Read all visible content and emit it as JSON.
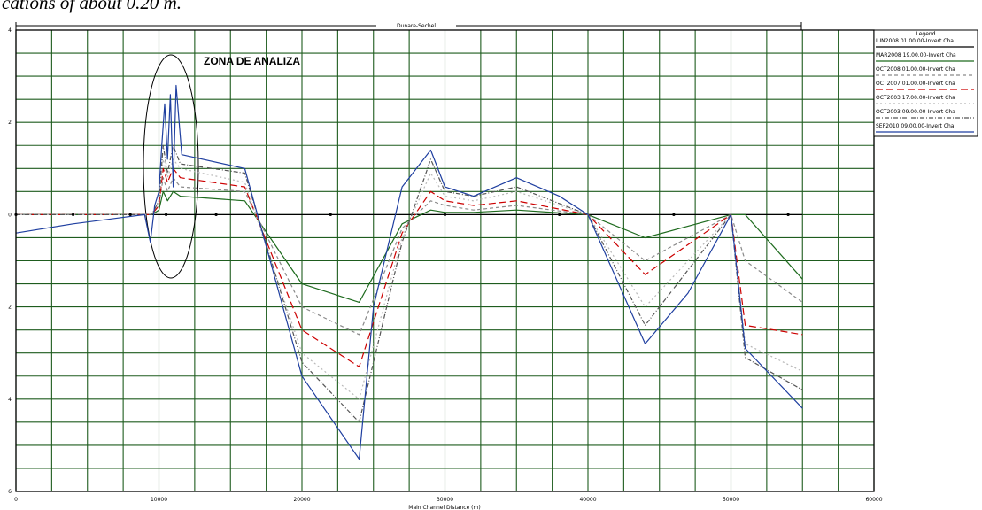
{
  "header_fragment": "cations of about 0.20 m.",
  "chart_data": {
    "type": "line",
    "title": "Dunare-Sechel",
    "xlabel": "Main Channel Distance (m)",
    "ylabel": "",
    "xlim": [
      0,
      60000
    ],
    "ylim": [
      -6,
      4
    ],
    "x_ticks": [
      "0",
      "10000",
      "20000",
      "30000",
      "40000",
      "50000",
      "60000"
    ],
    "y_ticks": [
      {
        "value": 4,
        "label": "4"
      },
      {
        "value": 2,
        "label": "2"
      },
      {
        "value": 0,
        "label": "0"
      },
      {
        "value": -2,
        "label": "2"
      },
      {
        "value": -4,
        "label": "4"
      },
      {
        "value": -6,
        "label": "6"
      }
    ],
    "grid": true,
    "legend_position": "right",
    "legend_title": "Legend",
    "annotation": "ZONA DE ANALIZA",
    "series": [
      {
        "name": "IUN2008 01.00.00-Invert Cha",
        "color": "#000000",
        "dash": "",
        "x": [
          0,
          1000,
          2000,
          3000,
          4000,
          5000,
          6000,
          7000,
          8000,
          9000,
          9500,
          10000,
          10500,
          11000,
          11500,
          12000,
          14000,
          16000,
          18000,
          20000,
          22000,
          24000,
          26000,
          28000,
          30000,
          32000,
          34000,
          36000,
          38000,
          40000,
          42000,
          44000,
          46000,
          48000,
          50000,
          52000,
          54000,
          55000
        ],
        "y": [
          0,
          0,
          0,
          0,
          0,
          0,
          0,
          0,
          0,
          0,
          0,
          0,
          0,
          0,
          0,
          0,
          0,
          0,
          0,
          0,
          0,
          0,
          0,
          0,
          0,
          0,
          0,
          0,
          0,
          0,
          0,
          0,
          0,
          0,
          0,
          0,
          0,
          0
        ]
      },
      {
        "name": "MAR2008 19.00.00-Invert Cha",
        "color": "#1e6b1e",
        "dash": "",
        "x": [
          0,
          9500,
          10000,
          10300,
          10600,
          11000,
          11500,
          16000,
          20000,
          24000,
          27000,
          29000,
          30000,
          32000,
          35000,
          40000,
          44000,
          50000,
          51000,
          55000
        ],
        "y": [
          0,
          0,
          0.1,
          0.5,
          0.3,
          0.5,
          0.4,
          0.3,
          -1.5,
          -1.9,
          -0.2,
          0.1,
          0.05,
          0.05,
          0.1,
          0,
          -0.5,
          0,
          0,
          -1.4
        ]
      },
      {
        "name": "OCT2008 01.00.00-Invert Cha",
        "color": "#8a8a8a",
        "dash": "4,3",
        "x": [
          0,
          9500,
          10000,
          10300,
          10600,
          11000,
          11500,
          16000,
          20000,
          24000,
          27000,
          29000,
          30000,
          32000,
          35000,
          40000,
          44000,
          50000,
          51000,
          55000
        ],
        "y": [
          0,
          0,
          0.2,
          0.8,
          0.5,
          0.8,
          0.6,
          0.5,
          -2.0,
          -2.6,
          -0.3,
          0.3,
          0.2,
          0.1,
          0.2,
          0,
          -1.0,
          0,
          -1.0,
          -1.9
        ]
      },
      {
        "name": "OCT2007 01.00.00-Invert Cha",
        "color": "#cc0000",
        "dash": "8,4",
        "x": [
          0,
          9500,
          10000,
          10300,
          10600,
          11000,
          11500,
          16000,
          20000,
          24000,
          27000,
          29000,
          30000,
          32000,
          35000,
          40000,
          44000,
          50000,
          51000,
          55000
        ],
        "y": [
          0,
          0,
          0.2,
          1.0,
          0.7,
          1.0,
          0.8,
          0.6,
          -2.5,
          -3.3,
          -0.4,
          0.5,
          0.3,
          0.2,
          0.3,
          0,
          -1.3,
          0,
          -2.4,
          -2.6
        ]
      },
      {
        "name": "OCT2003 17.00.00-Invert Cha",
        "color": "#b8b8b8",
        "dash": "2,3",
        "x": [
          0,
          9500,
          10000,
          10300,
          10600,
          11000,
          11500,
          16000,
          20000,
          24000,
          27000,
          29000,
          30000,
          32000,
          35000,
          40000,
          44000,
          50000,
          51000,
          55000
        ],
        "y": [
          0,
          0,
          0.3,
          1.2,
          0.8,
          1.2,
          1.0,
          0.7,
          -3.0,
          -4.0,
          -0.5,
          0.9,
          0.4,
          0.3,
          0.5,
          0,
          -2.0,
          0,
          -2.8,
          -3.4
        ]
      },
      {
        "name": "OCT2003 09.00.00-Invert Cha",
        "color": "#555555",
        "dash": "5,2,1,2",
        "x": [
          0,
          9500,
          10000,
          10300,
          10600,
          11000,
          11500,
          16000,
          20000,
          24000,
          27000,
          29000,
          30000,
          32000,
          35000,
          40000,
          44000,
          50000,
          51000,
          55000
        ],
        "y": [
          0,
          0,
          0.3,
          1.5,
          0.9,
          1.5,
          1.1,
          0.9,
          -3.2,
          -4.5,
          -0.6,
          1.2,
          0.5,
          0.4,
          0.6,
          0,
          -2.4,
          0,
          -3.1,
          -3.8
        ]
      },
      {
        "name": "SEP2010 09.00.00-Invert Cha",
        "color": "#1f3fa0",
        "dash": "",
        "x": [
          0,
          4000,
          9000,
          9400,
          9700,
          10000,
          10200,
          10400,
          10600,
          10800,
          11000,
          11200,
          11600,
          16000,
          20000,
          24000,
          25000,
          27000,
          29000,
          30000,
          32000,
          35000,
          38000,
          40000,
          44000,
          47000,
          50000,
          51000,
          55000
        ],
        "y": [
          -0.4,
          -0.2,
          0,
          -0.6,
          0.2,
          0.5,
          1.5,
          2.4,
          1.2,
          2.6,
          0.6,
          2.8,
          1.3,
          1.0,
          -3.5,
          -5.3,
          -2.0,
          0.6,
          1.4,
          0.6,
          0.4,
          0.8,
          0.4,
          0,
          -2.8,
          -1.7,
          0,
          -2.9,
          -4.2
        ]
      }
    ]
  }
}
